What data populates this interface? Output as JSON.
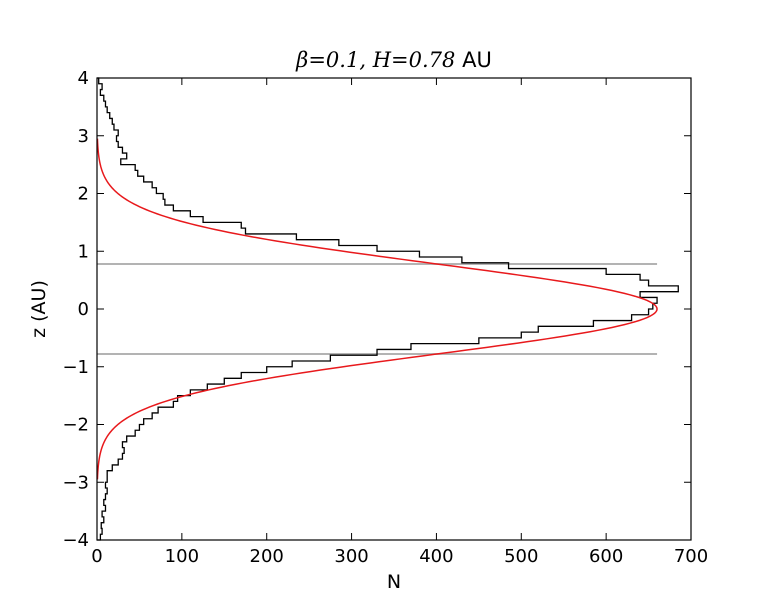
{
  "chart_data": {
    "type": "histogram",
    "orientation": "horizontal",
    "title": {
      "beta_symbol": "β",
      "beta_value": "0.1",
      "h_symbol": "H",
      "h_value": "0.78",
      "unit": "AU"
    },
    "xlabel": "N",
    "ylabel": "z (AU)",
    "xlim": [
      0,
      700
    ],
    "ylim": [
      -4,
      4
    ],
    "x_ticks": [
      0,
      100,
      200,
      300,
      400,
      500,
      600,
      700
    ],
    "x_tick_labels": [
      "0",
      "100",
      "200",
      "300",
      "400",
      "500",
      "600",
      "700"
    ],
    "y_ticks": [
      4,
      3,
      2,
      1,
      0,
      -1,
      -2,
      -3,
      -4
    ],
    "y_tick_labels": [
      "4",
      "3",
      "2",
      "1",
      "0",
      "−1",
      "−2",
      "−3",
      "−4"
    ],
    "grid": false,
    "colors": {
      "histogram": "#000000",
      "fit_curve": "#e8191c",
      "reference_lines": "#b3b3b3"
    },
    "reference_lines": [
      {
        "y": 0.78,
        "x_range": [
          0,
          660
        ]
      },
      {
        "y": -0.78,
        "x_range": [
          0,
          660
        ]
      }
    ],
    "fit_curve": {
      "form": "gaussian",
      "amplitude": 660,
      "scale_height": 0.78,
      "z_range": [
        -2.95,
        2.95
      ]
    },
    "histogram": {
      "bin_edges": [
        4.0,
        3.9,
        3.8,
        3.7,
        3.6,
        3.5,
        3.4,
        3.3,
        3.2,
        3.1,
        3.0,
        2.9,
        2.8,
        2.7,
        2.6,
        2.5,
        2.4,
        2.3,
        2.2,
        2.1,
        2.0,
        1.9,
        1.8,
        1.7,
        1.6,
        1.5,
        1.4,
        1.3,
        1.2,
        1.1,
        1.0,
        0.9,
        0.8,
        0.7,
        0.6,
        0.5,
        0.4,
        0.3,
        0.2,
        0.1,
        0.0,
        -0.1,
        -0.2,
        -0.3,
        -0.4,
        -0.5,
        -0.6,
        -0.7,
        -0.8,
        -0.9,
        -1.0,
        -1.1,
        -1.2,
        -1.3,
        -1.4,
        -1.5,
        -1.6,
        -1.7,
        -1.8,
        -1.9,
        -2.0,
        -2.1,
        -2.2,
        -2.3,
        -2.4,
        -2.5,
        -2.6,
        -2.7,
        -2.8,
        -2.9,
        -3.0,
        -3.1,
        -3.2,
        -3.3,
        -3.4,
        -3.5,
        -3.6,
        -3.7,
        -3.8,
        -3.9,
        -4.0
      ],
      "counts": [
        2,
        6,
        4,
        8,
        10,
        12,
        15,
        18,
        20,
        25,
        23,
        25,
        30,
        35,
        28,
        45,
        48,
        55,
        65,
        70,
        78,
        80,
        90,
        110,
        125,
        170,
        175,
        235,
        285,
        330,
        380,
        430,
        485,
        600,
        640,
        650,
        685,
        640,
        660,
        655,
        650,
        630,
        585,
        520,
        500,
        450,
        370,
        330,
        275,
        230,
        200,
        170,
        150,
        130,
        110,
        95,
        90,
        72,
        65,
        55,
        50,
        45,
        35,
        30,
        32,
        30,
        25,
        18,
        12,
        12,
        10,
        12,
        10,
        8,
        10,
        6,
        8,
        5,
        6,
        4
      ]
    }
  }
}
